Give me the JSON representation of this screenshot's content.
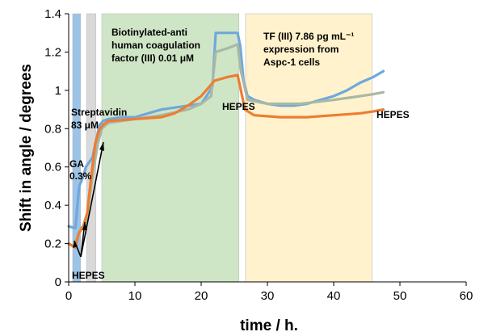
{
  "chart_data": {
    "type": "line",
    "xlabel": "time / h.",
    "ylabel": "Shift in angle / degrees",
    "xlim": [
      0,
      60
    ],
    "ylim": [
      0,
      1.4
    ],
    "xticks": [
      "0",
      "10",
      "20",
      "30",
      "40",
      "50",
      "60"
    ],
    "yticks": [
      "0",
      "0.2",
      "0.4",
      "0.6",
      "0.8",
      "1",
      "1.2",
      "1.4"
    ],
    "grid": false,
    "legend": "none",
    "shaded_regions": [
      {
        "x": [
          0.6,
          1.8
        ],
        "color": "#9dc3e6"
      },
      {
        "x": [
          2.7,
          4.1
        ],
        "color": "#d9d9d9"
      },
      {
        "x": [
          5.0,
          25.7
        ],
        "color": "#cfe6c6"
      },
      {
        "x": [
          26.7,
          45.8
        ],
        "color": "#fff2cc"
      }
    ],
    "series": [
      {
        "color": "#6fa8dc",
        "points": [
          [
            0,
            0.29
          ],
          [
            1,
            0.28
          ],
          [
            1.6,
            0.5
          ],
          [
            2.2,
            0.55
          ],
          [
            2.6,
            0.6
          ],
          [
            3,
            0.62
          ],
          [
            3.6,
            0.65
          ],
          [
            4.2,
            0.75
          ],
          [
            4.7,
            0.82
          ],
          [
            5.2,
            0.84
          ],
          [
            6,
            0.85
          ],
          [
            8,
            0.86
          ],
          [
            10,
            0.86
          ],
          [
            12,
            0.88
          ],
          [
            14,
            0.9
          ],
          [
            16,
            0.91
          ],
          [
            18,
            0.92
          ],
          [
            20,
            0.93
          ],
          [
            21,
            0.98
          ],
          [
            21.7,
            1.02
          ],
          [
            22.2,
            1.3
          ],
          [
            24,
            1.3
          ],
          [
            25.5,
            1.3
          ],
          [
            25.9,
            1.23
          ],
          [
            26.4,
            1.05
          ],
          [
            27,
            0.97
          ],
          [
            28,
            0.95
          ],
          [
            30,
            0.93
          ],
          [
            32,
            0.92
          ],
          [
            34,
            0.92
          ],
          [
            36,
            0.93
          ],
          [
            38,
            0.95
          ],
          [
            40,
            0.97
          ],
          [
            42,
            1.0
          ],
          [
            44,
            1.04
          ],
          [
            46,
            1.07
          ],
          [
            47.5,
            1.1
          ]
        ]
      },
      {
        "color": "#a9b8a4",
        "points": [
          [
            1,
            0.2
          ],
          [
            1.8,
            0.28
          ],
          [
            2.6,
            0.3
          ],
          [
            3.2,
            0.45
          ],
          [
            3.8,
            0.6
          ],
          [
            4.4,
            0.72
          ],
          [
            5,
            0.8
          ],
          [
            6,
            0.83
          ],
          [
            10,
            0.85
          ],
          [
            14,
            0.87
          ],
          [
            18,
            0.9
          ],
          [
            20,
            0.93
          ],
          [
            21.5,
            0.97
          ],
          [
            22.2,
            1.2
          ],
          [
            24,
            1.22
          ],
          [
            25.5,
            1.24
          ],
          [
            26,
            1.1
          ],
          [
            27,
            0.95
          ],
          [
            30,
            0.93
          ],
          [
            35,
            0.93
          ],
          [
            40,
            0.95
          ],
          [
            44,
            0.97
          ],
          [
            46,
            0.98
          ],
          [
            47.5,
            0.99
          ]
        ]
      },
      {
        "color": "#ed7d31",
        "points": [
          [
            0,
            0.2
          ],
          [
            1,
            0.18
          ],
          [
            1.5,
            0.25
          ],
          [
            2.2,
            0.29
          ],
          [
            2.8,
            0.36
          ],
          [
            3.4,
            0.55
          ],
          [
            4,
            0.72
          ],
          [
            4.6,
            0.79
          ],
          [
            5.2,
            0.82
          ],
          [
            6,
            0.84
          ],
          [
            10,
            0.85
          ],
          [
            14,
            0.86
          ],
          [
            16,
            0.88
          ],
          [
            18,
            0.92
          ],
          [
            20,
            0.97
          ],
          [
            21,
            1.01
          ],
          [
            22,
            1.05
          ],
          [
            24,
            1.07
          ],
          [
            25.5,
            1.08
          ],
          [
            26,
            1.0
          ],
          [
            26.6,
            0.9
          ],
          [
            28,
            0.87
          ],
          [
            32,
            0.86
          ],
          [
            36,
            0.86
          ],
          [
            40,
            0.87
          ],
          [
            44,
            0.88
          ],
          [
            46,
            0.89
          ],
          [
            47.5,
            0.9
          ]
        ]
      }
    ],
    "annotations": {
      "ga": [
        "GA",
        "0.3%"
      ],
      "hepes": "HEPES",
      "streptavidin": [
        "Streptavidin",
        "83 μM"
      ],
      "biotin": [
        "Biotinylated-anti",
        "human coagulation",
        "factor (III) 0.01  μM"
      ],
      "tf": [
        "TF  (III) 7.86 pg mL⁻¹",
        "expression from",
        "Aspc-1  cells"
      ]
    }
  }
}
